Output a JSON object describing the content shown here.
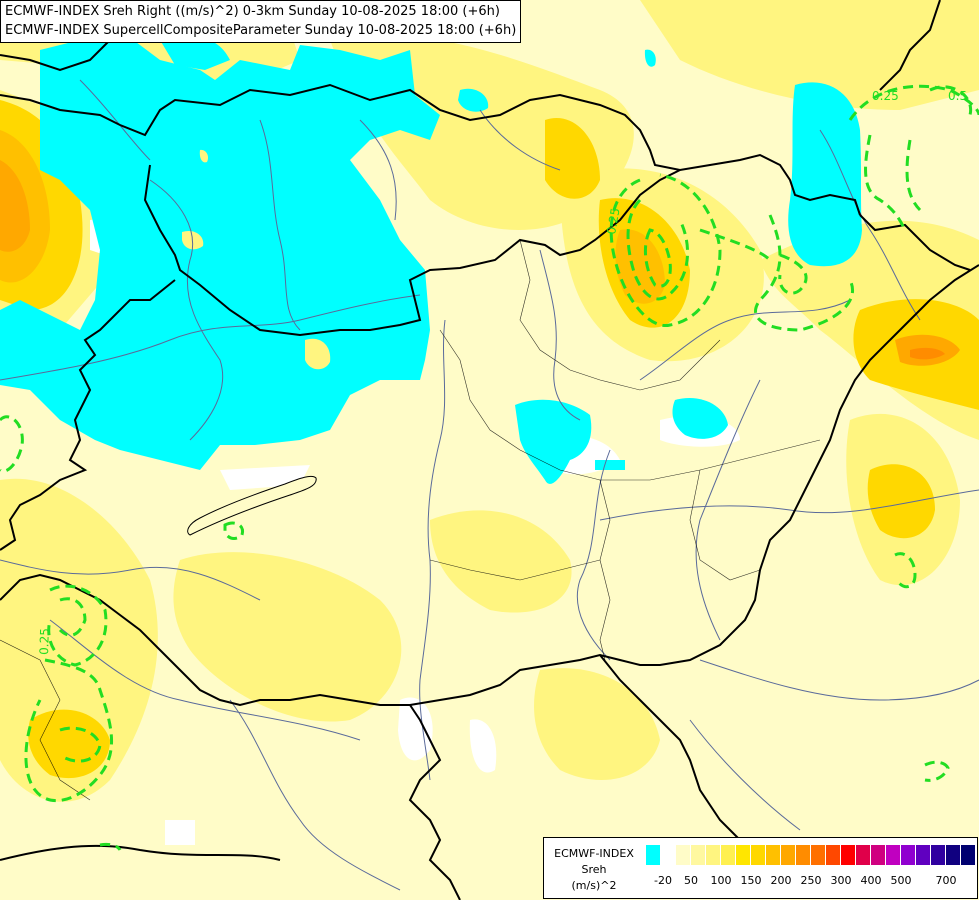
{
  "titles": [
    "ECMWF-INDEX Sreh Right ((m/s)^2) 0-3km Sunday 10-08-2025 18:00 (+6h)",
    "ECMWF-INDEX SupercellCompositeParameter Sunday 10-08-2025 18:00 (+6h)"
  ],
  "legend": {
    "title_lines": [
      "ECMWF-INDEX",
      "Sreh",
      "(m/s)^2"
    ],
    "colors": [
      "#00ffff",
      "#ffffff",
      "#fffcc8",
      "#fff8a0",
      "#fff580",
      "#fff050",
      "#ffe600",
      "#ffd800",
      "#ffc000",
      "#ffa800",
      "#ff8c00",
      "#ff7000",
      "#ff4800",
      "#ff0000",
      "#e0004a",
      "#d00080",
      "#c000c0",
      "#9000d0",
      "#6000c0",
      "#3000a0",
      "#100080",
      "#000070"
    ],
    "ticks": [
      "-20",
      "50",
      "100",
      "150",
      "200",
      "250",
      "300",
      "400",
      "500",
      "700"
    ]
  },
  "contour_labels": [
    "0.25",
    "0.5",
    "0.25",
    "0.25"
  ],
  "colors": {
    "background": "#fffcc8",
    "cyan": "#00ffff",
    "border": "#000000",
    "river": "#5a6a9a",
    "contour": "#22dd22"
  }
}
